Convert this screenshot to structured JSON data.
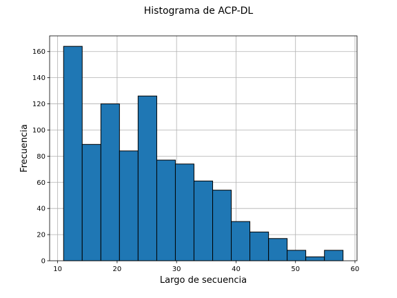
{
  "chart_data": {
    "type": "bar",
    "title": "Histograma de ACP-DL",
    "xlabel": "Largo de secuencia",
    "ylabel": "Frecuencia",
    "xlim": [
      8.65,
      60.35
    ],
    "ylim": [
      0,
      172
    ],
    "xticks": [
      10,
      20,
      30,
      40,
      50,
      60
    ],
    "yticks": [
      0,
      20,
      40,
      60,
      80,
      100,
      120,
      140,
      160
    ],
    "grid": true,
    "bins": [
      {
        "start": 11.0,
        "end": 14.13,
        "value": 164
      },
      {
        "start": 14.13,
        "end": 17.27,
        "value": 89
      },
      {
        "start": 17.27,
        "end": 20.4,
        "value": 120
      },
      {
        "start": 20.4,
        "end": 23.53,
        "value": 84
      },
      {
        "start": 23.53,
        "end": 26.67,
        "value": 126
      },
      {
        "start": 26.67,
        "end": 29.8,
        "value": 77
      },
      {
        "start": 29.8,
        "end": 32.93,
        "value": 74
      },
      {
        "start": 32.93,
        "end": 36.07,
        "value": 61
      },
      {
        "start": 36.07,
        "end": 39.2,
        "value": 54
      },
      {
        "start": 39.2,
        "end": 42.33,
        "value": 30
      },
      {
        "start": 42.33,
        "end": 45.47,
        "value": 22
      },
      {
        "start": 45.47,
        "end": 48.6,
        "value": 17
      },
      {
        "start": 48.6,
        "end": 51.73,
        "value": 8
      },
      {
        "start": 51.73,
        "end": 54.87,
        "value": 3
      },
      {
        "start": 54.87,
        "end": 58.0,
        "value": 8
      }
    ]
  }
}
